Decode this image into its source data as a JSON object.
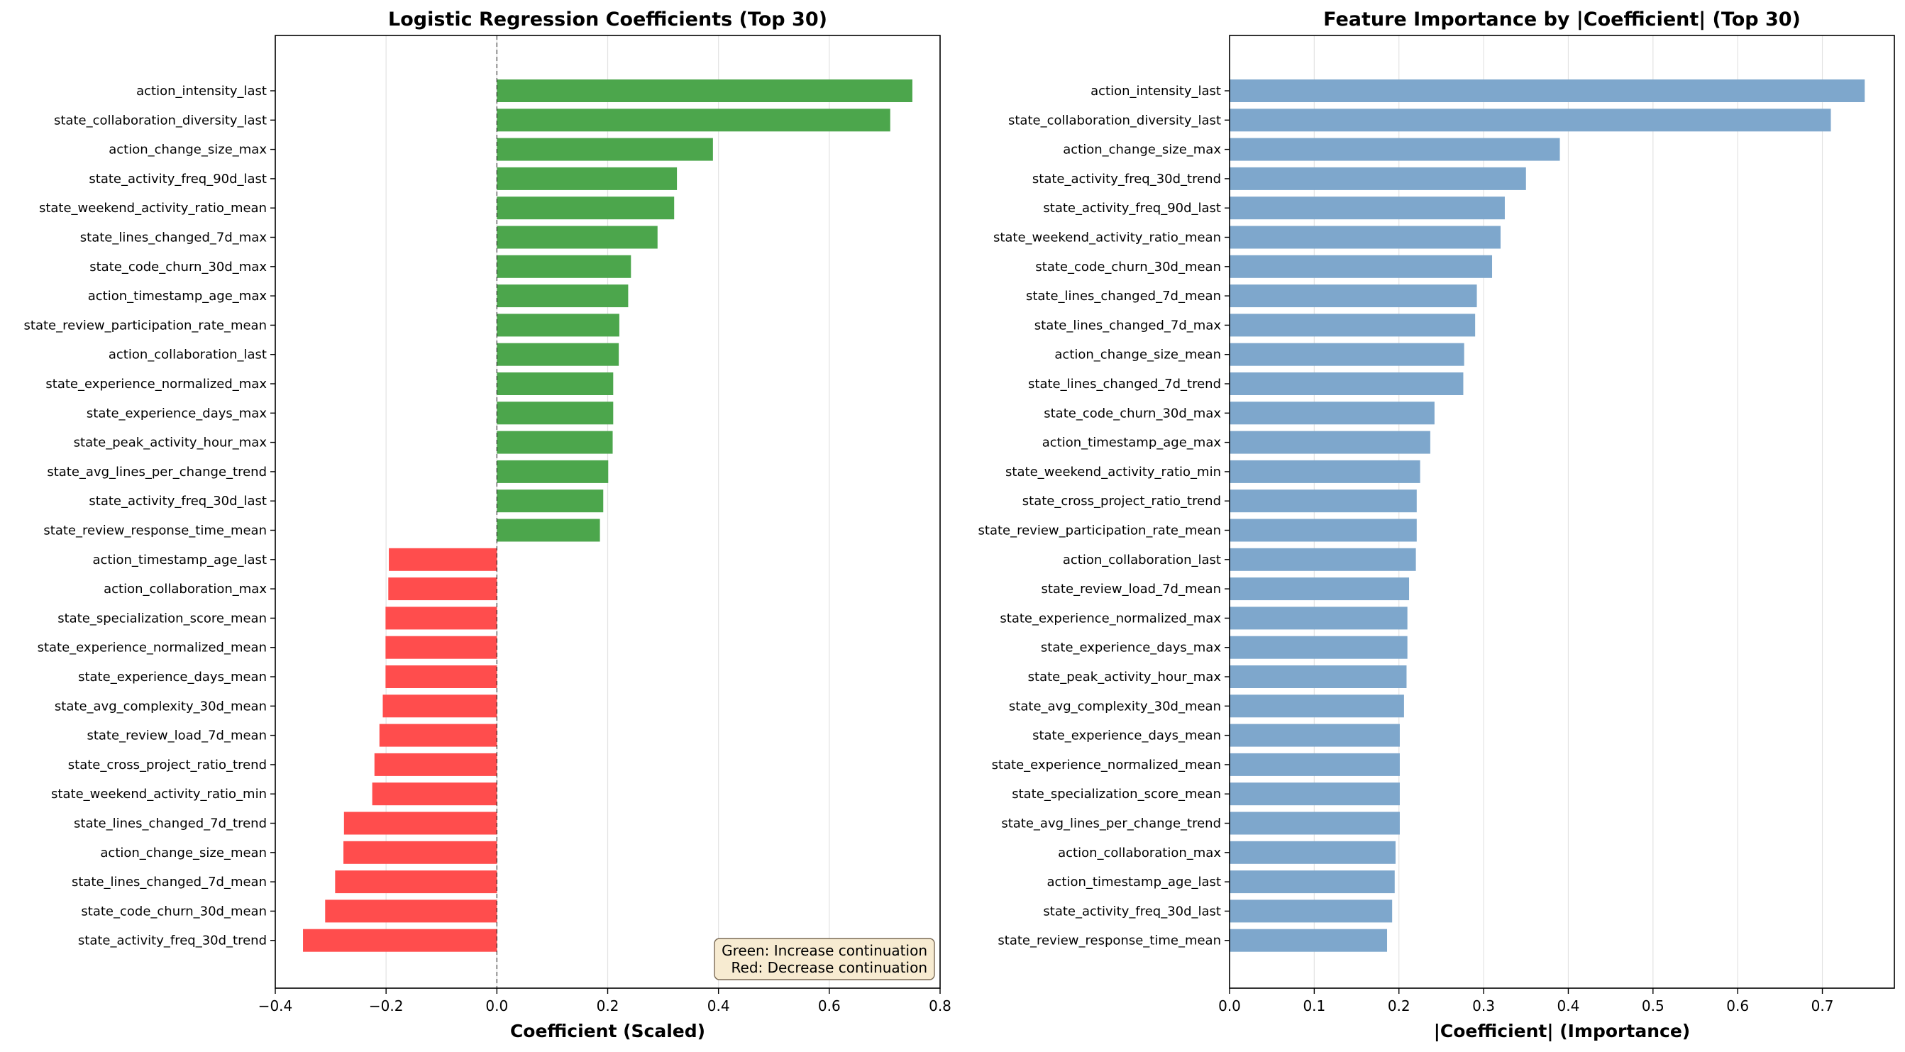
{
  "colors": {
    "positive": "#4ca64c",
    "negative": "#ff4d4d",
    "importance": "#7ea7cc",
    "legend_bg": "#f7ebd1",
    "legend_border": "#7a6a55"
  },
  "chart_data": [
    {
      "type": "bar",
      "orientation": "horizontal",
      "title": "Logistic Regression Coefficients (Top 30)",
      "xlabel": "Coefficient (Scaled)",
      "ylabel": "",
      "xlim": [
        -0.4,
        0.8
      ],
      "xticks": [
        -0.4,
        -0.2,
        0.0,
        0.2,
        0.4,
        0.6,
        0.8
      ],
      "xtick_labels": [
        "−0.4",
        "−0.2",
        "0.0",
        "0.2",
        "0.4",
        "0.6",
        "0.8"
      ],
      "grid": "vertical",
      "zero_line": "dashed",
      "annotation": {
        "lines": [
          "Green: Increase continuation",
          "Red: Decrease continuation"
        ],
        "placement": "bottom-right"
      },
      "categories": [
        "action_intensity_last",
        "state_collaboration_diversity_last",
        "action_change_size_max",
        "state_activity_freq_90d_last",
        "state_weekend_activity_ratio_mean",
        "state_lines_changed_7d_max",
        "state_code_churn_30d_max",
        "action_timestamp_age_max",
        "state_review_participation_rate_mean",
        "action_collaboration_last",
        "state_experience_normalized_max",
        "state_experience_days_max",
        "state_peak_activity_hour_max",
        "state_avg_lines_per_change_trend",
        "state_activity_freq_30d_last",
        "state_review_response_time_mean",
        "action_timestamp_age_last",
        "action_collaboration_max",
        "state_specialization_score_mean",
        "state_experience_normalized_mean",
        "state_experience_days_mean",
        "state_avg_complexity_30d_mean",
        "state_review_load_7d_mean",
        "state_cross_project_ratio_trend",
        "state_weekend_activity_ratio_min",
        "state_lines_changed_7d_trend",
        "action_change_size_mean",
        "state_lines_changed_7d_mean",
        "state_code_churn_30d_mean",
        "state_activity_freq_30d_trend"
      ],
      "values": [
        0.75,
        0.71,
        0.39,
        0.325,
        0.32,
        0.29,
        0.242,
        0.237,
        0.221,
        0.22,
        0.21,
        0.21,
        0.209,
        0.201,
        0.192,
        0.186,
        -0.195,
        -0.196,
        -0.201,
        -0.201,
        -0.201,
        -0.206,
        -0.212,
        -0.221,
        -0.225,
        -0.276,
        -0.277,
        -0.292,
        -0.31,
        -0.35
      ]
    },
    {
      "type": "bar",
      "orientation": "horizontal",
      "title": "Feature Importance by |Coefficient| (Top 30)",
      "xlabel": "|Coefficient| (Importance)",
      "ylabel": "",
      "xlim": [
        0.0,
        0.785
      ],
      "xticks": [
        0.0,
        0.1,
        0.2,
        0.3,
        0.4,
        0.5,
        0.6,
        0.7
      ],
      "xtick_labels": [
        "0.0",
        "0.1",
        "0.2",
        "0.3",
        "0.4",
        "0.5",
        "0.6",
        "0.7"
      ],
      "grid": "vertical",
      "categories": [
        "action_intensity_last",
        "state_collaboration_diversity_last",
        "action_change_size_max",
        "state_activity_freq_30d_trend",
        "state_activity_freq_90d_last",
        "state_weekend_activity_ratio_mean",
        "state_code_churn_30d_mean",
        "state_lines_changed_7d_mean",
        "state_lines_changed_7d_max",
        "action_change_size_mean",
        "state_lines_changed_7d_trend",
        "state_code_churn_30d_max",
        "action_timestamp_age_max",
        "state_weekend_activity_ratio_min",
        "state_cross_project_ratio_trend",
        "state_review_participation_rate_mean",
        "action_collaboration_last",
        "state_review_load_7d_mean",
        "state_experience_normalized_max",
        "state_experience_days_max",
        "state_peak_activity_hour_max",
        "state_avg_complexity_30d_mean",
        "state_experience_days_mean",
        "state_experience_normalized_mean",
        "state_specialization_score_mean",
        "state_avg_lines_per_change_trend",
        "action_collaboration_max",
        "action_timestamp_age_last",
        "state_activity_freq_30d_last",
        "state_review_response_time_mean"
      ],
      "values": [
        0.75,
        0.71,
        0.39,
        0.35,
        0.325,
        0.32,
        0.31,
        0.292,
        0.29,
        0.277,
        0.276,
        0.242,
        0.237,
        0.225,
        0.221,
        0.221,
        0.22,
        0.212,
        0.21,
        0.21,
        0.209,
        0.206,
        0.201,
        0.201,
        0.201,
        0.201,
        0.196,
        0.195,
        0.192,
        0.186
      ]
    }
  ]
}
